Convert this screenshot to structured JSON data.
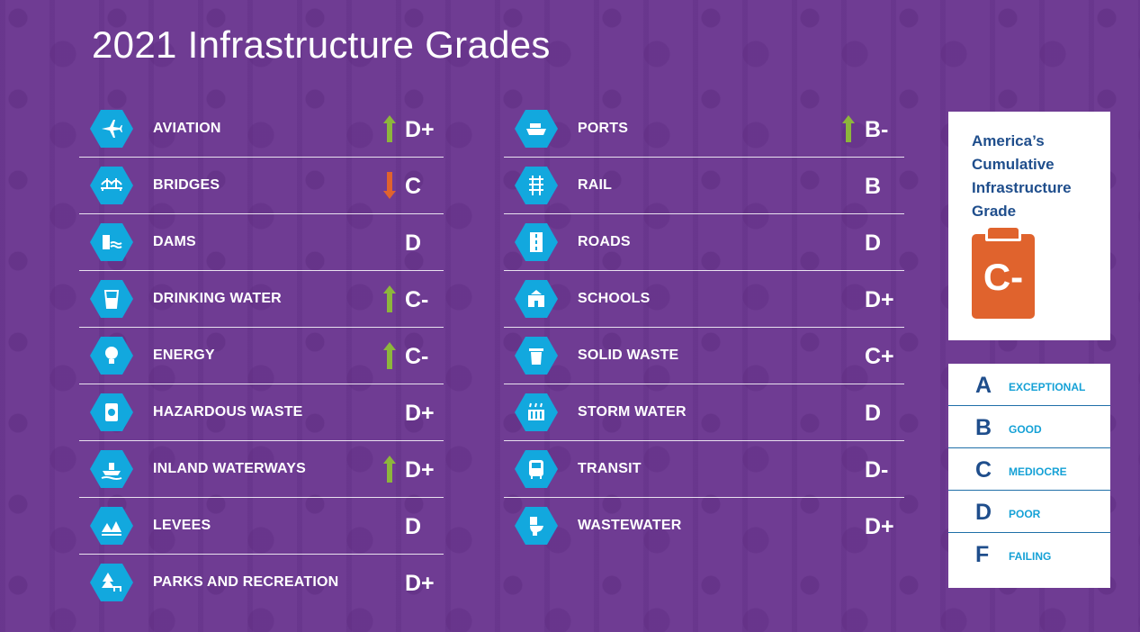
{
  "title": "2021 Infrastructure Grades",
  "colors": {
    "background": "#6f3c93",
    "icon_hex": "#12a8de",
    "arrow_up": "#8db63c",
    "arrow_down": "#e0632d",
    "cumulative_grade_badge": "#e0632d",
    "legend_letter": "#1f4e8c",
    "legend_label": "#15a1d6"
  },
  "categories_left": [
    {
      "name": "AVIATION",
      "icon": "airplane-icon",
      "trend": "up",
      "grade": "D+"
    },
    {
      "name": "BRIDGES",
      "icon": "bridge-icon",
      "trend": "down",
      "grade": "C"
    },
    {
      "name": "DAMS",
      "icon": "dam-icon",
      "trend": "none",
      "grade": "D"
    },
    {
      "name": "DRINKING WATER",
      "icon": "water-glass-icon",
      "trend": "up",
      "grade": "C-"
    },
    {
      "name": "ENERGY",
      "icon": "lightbulb-icon",
      "trend": "up",
      "grade": "C-"
    },
    {
      "name": "HAZARDOUS WASTE",
      "icon": "hazard-barrel-icon",
      "trend": "none",
      "grade": "D+"
    },
    {
      "name": "INLAND WATERWAYS",
      "icon": "boat-icon",
      "trend": "up",
      "grade": "D+"
    },
    {
      "name": "LEVEES",
      "icon": "levee-icon",
      "trend": "none",
      "grade": "D"
    },
    {
      "name": "PARKS AND RECREATION",
      "icon": "tree-picnic-icon",
      "trend": "none",
      "grade": "D+"
    }
  ],
  "categories_right": [
    {
      "name": "PORTS",
      "icon": "ship-icon",
      "trend": "up",
      "grade": "B-"
    },
    {
      "name": "RAIL",
      "icon": "rail-track-icon",
      "trend": "none",
      "grade": "B"
    },
    {
      "name": "ROADS",
      "icon": "road-icon",
      "trend": "none",
      "grade": "D"
    },
    {
      "name": "SCHOOLS",
      "icon": "school-icon",
      "trend": "none",
      "grade": "D+"
    },
    {
      "name": "SOLID WASTE",
      "icon": "trash-can-icon",
      "trend": "none",
      "grade": "C+"
    },
    {
      "name": "STORM WATER",
      "icon": "storm-drain-icon",
      "trend": "none",
      "grade": "D"
    },
    {
      "name": "TRANSIT",
      "icon": "bus-icon",
      "trend": "none",
      "grade": "D-"
    },
    {
      "name": "WASTEWATER",
      "icon": "toilet-icon",
      "trend": "none",
      "grade": "D+"
    }
  ],
  "cumulative": {
    "title": "America’s Cumulative Infrastructure Grade",
    "grade": "C-",
    "icon": "clipboard-icon"
  },
  "legend": [
    {
      "letter": "A",
      "label": "EXCEPTIONAL"
    },
    {
      "letter": "B",
      "label": "GOOD"
    },
    {
      "letter": "C",
      "label": "MEDIOCRE"
    },
    {
      "letter": "D",
      "label": "POOR"
    },
    {
      "letter": "F",
      "label": "FAILING"
    }
  ]
}
